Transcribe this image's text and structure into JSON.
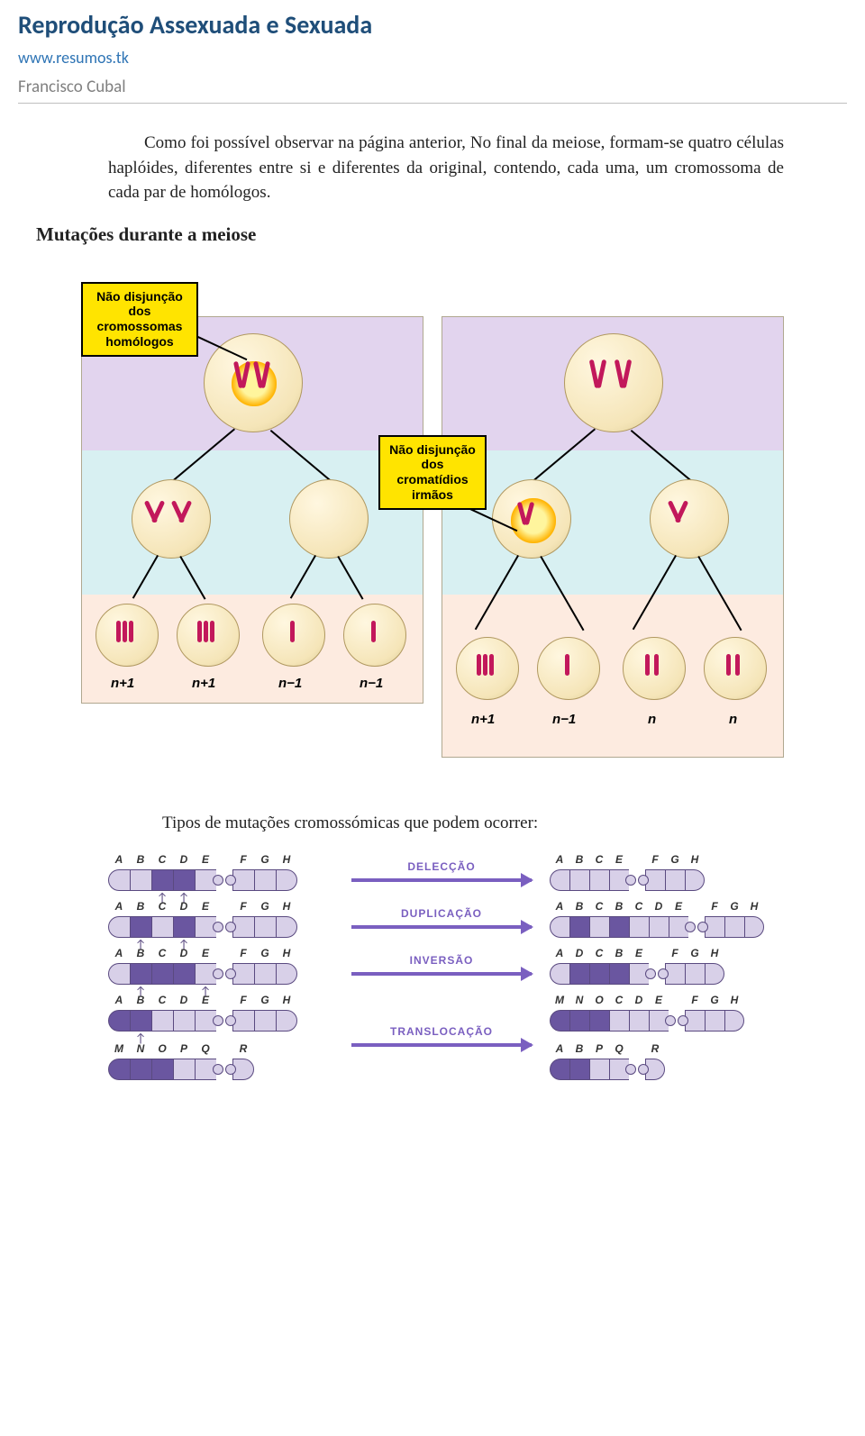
{
  "header": {
    "title": "Reprodução Assexuada e Sexuada",
    "url": "www.resumos.tk",
    "author": "Francisco Cubal"
  },
  "paragraph": "Como foi possível observar na página anterior, No final da meiose, formam-se quatro células haplóides, diferentes entre si e diferentes da original, contendo, cada uma, um cromossoma de cada par de homólogos.",
  "section_title": "Mutações durante a meiose",
  "subtitle": "Tipos de mutações cromossómicas que podem ocorrer:",
  "meiosis": {
    "callout_left": "Não disjunção\ndos\ncromossomas\nhomólogos",
    "callout_right": "Não disjunção\ndos\ncromatídios\nirmãos",
    "band_colors": {
      "top": "#e2d4ee",
      "mid": "#d8f0f2",
      "bot": "#fdebe0"
    },
    "left_labels": [
      "n+1",
      "n+1",
      "n−1",
      "n−1"
    ],
    "right_labels": [
      "n+1",
      "n−1",
      "n",
      "n"
    ],
    "cell_fill": "#f5e5b8",
    "chrom_color": "#c2185b",
    "callout_bg": "#ffe400"
  },
  "mutations": {
    "arrow_color": "#7a5fc0",
    "seg_colors": {
      "light": "#d8d0e8",
      "mid": "#9a88c0",
      "dark": "#6a56a0"
    },
    "rows": [
      {
        "label": "DELECÇÃO",
        "left": {
          "segs": [
            "A",
            "B",
            "C",
            "D",
            "E",
            "|",
            "F",
            "G",
            "H"
          ],
          "dark": [
            2,
            3
          ],
          "arrows": [
            2,
            3
          ]
        },
        "right": {
          "segs": [
            "A",
            "B",
            "C",
            "E",
            "|",
            "F",
            "G",
            "H"
          ],
          "dark": []
        }
      },
      {
        "label": "DUPLICAÇÃO",
        "left": {
          "segs": [
            "A",
            "B",
            "C",
            "D",
            "E",
            "|",
            "F",
            "G",
            "H"
          ],
          "dark": [
            1,
            3
          ],
          "arrows": [
            1,
            3
          ]
        },
        "right": {
          "segs": [
            "A",
            "B",
            "C",
            "B",
            "C",
            "D",
            "E",
            "|",
            "F",
            "G",
            "H"
          ],
          "dark": [
            1,
            3
          ]
        }
      },
      {
        "label": "INVERSÃO",
        "left": {
          "segs": [
            "A",
            "B",
            "C",
            "D",
            "E",
            "|",
            "F",
            "G",
            "H"
          ],
          "dark": [
            1,
            2,
            3
          ],
          "arrows": [
            1,
            4
          ]
        },
        "right": {
          "segs": [
            "A",
            "D",
            "C",
            "B",
            "E",
            "|",
            "F",
            "G",
            "H"
          ],
          "dark": [
            1,
            2,
            3
          ]
        }
      },
      {
        "label": "TRANSLOCAÇÃO",
        "left_stack": [
          {
            "segs": [
              "A",
              "B",
              "C",
              "D",
              "E",
              "|",
              "F",
              "G",
              "H"
            ],
            "dark": [
              0,
              1
            ],
            "arrows": [
              1
            ]
          },
          {
            "segs": [
              "M",
              "N",
              "O",
              "P",
              "Q",
              "|",
              "R"
            ],
            "dark": [
              0,
              1,
              2
            ],
            "arrows": []
          }
        ],
        "right_stack": [
          {
            "segs": [
              "M",
              "N",
              "O",
              "C",
              "D",
              "E",
              "|",
              "F",
              "G",
              "H"
            ],
            "dark": [
              0,
              1,
              2
            ]
          },
          {
            "segs": [
              "A",
              "B",
              "P",
              "Q",
              "|",
              "R"
            ],
            "dark": [
              0,
              1
            ]
          }
        ]
      }
    ]
  }
}
